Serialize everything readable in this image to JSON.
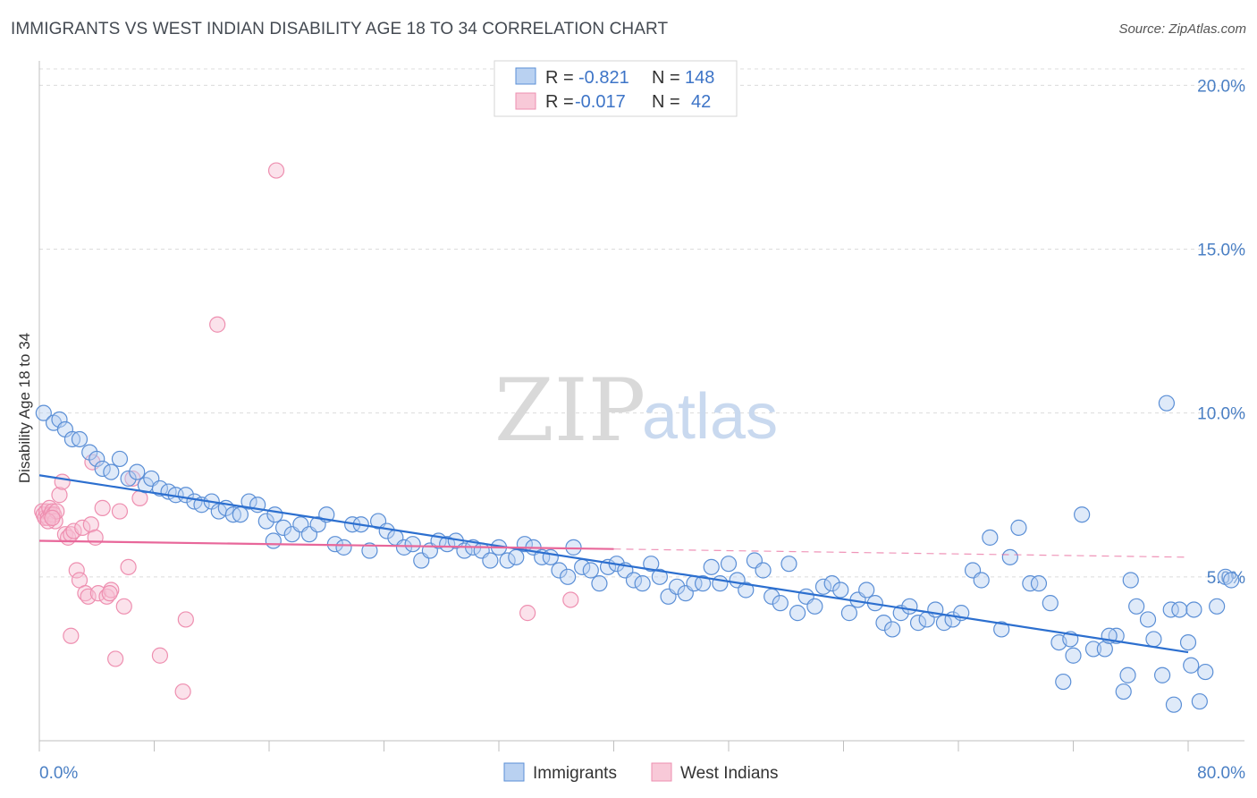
{
  "header": {
    "title": "IMMIGRANTS VS WEST INDIAN DISABILITY AGE 18 TO 34 CORRELATION CHART",
    "source": "Source: ZipAtlas.com"
  },
  "watermark": {
    "zip": "ZIP",
    "atlas": "atlas"
  },
  "legend": {
    "r_label": "R =",
    "n_label": "N =",
    "rows": [
      {
        "r": "-0.821",
        "n": "148"
      },
      {
        "r": "-0.017",
        "n": "42"
      }
    ]
  },
  "chart_data": {
    "type": "scatter",
    "title": "IMMIGRANTS VS WEST INDIAN DISABILITY AGE 18 TO 34 CORRELATION CHART",
    "ylabel": "Disability Age 18 to 34",
    "xlabel": "",
    "xlim": [
      0,
      80
    ],
    "ylim": [
      0,
      20.5
    ],
    "x_tick_labels": [
      "0.0%",
      "80.0%"
    ],
    "y_ticks": [
      5,
      10,
      15,
      20
    ],
    "y_tick_labels": [
      "5.0%",
      "10.0%",
      "15.0%",
      "20.0%"
    ],
    "grid": "horizontal dashed",
    "legend_position": "top-center",
    "colors": {
      "immigrants": "#5b8fd6",
      "west_indians": "#ee8fb0",
      "immigrants_line": "#2c6fcf",
      "west_indians_line": "#e8679a"
    },
    "series": [
      {
        "name": "Immigrants",
        "color": "#5b8fd6",
        "R": -0.821,
        "N": 148,
        "trend": {
          "x": [
            0,
            80
          ],
          "y": [
            8.1,
            2.7
          ],
          "dashed_from": null
        },
        "points": [
          [
            0.3,
            10.0
          ],
          [
            1.0,
            9.7
          ],
          [
            1.4,
            9.8
          ],
          [
            1.8,
            9.5
          ],
          [
            2.3,
            9.2
          ],
          [
            2.8,
            9.2
          ],
          [
            3.5,
            8.8
          ],
          [
            4.0,
            8.6
          ],
          [
            4.4,
            8.3
          ],
          [
            5.0,
            8.2
          ],
          [
            5.6,
            8.6
          ],
          [
            6.2,
            8.0
          ],
          [
            6.8,
            8.2
          ],
          [
            7.4,
            7.8
          ],
          [
            7.8,
            8.0
          ],
          [
            8.4,
            7.7
          ],
          [
            9.0,
            7.6
          ],
          [
            9.5,
            7.5
          ],
          [
            10.2,
            7.5
          ],
          [
            10.8,
            7.3
          ],
          [
            11.3,
            7.2
          ],
          [
            12.0,
            7.3
          ],
          [
            12.5,
            7.0
          ],
          [
            13.0,
            7.1
          ],
          [
            13.5,
            6.9
          ],
          [
            14.0,
            6.9
          ],
          [
            14.6,
            7.3
          ],
          [
            15.2,
            7.2
          ],
          [
            15.8,
            6.7
          ],
          [
            16.4,
            6.9
          ],
          [
            16.3,
            6.1
          ],
          [
            17.0,
            6.5
          ],
          [
            17.6,
            6.3
          ],
          [
            18.2,
            6.6
          ],
          [
            18.8,
            6.3
          ],
          [
            19.4,
            6.6
          ],
          [
            20.0,
            6.9
          ],
          [
            20.6,
            6.0
          ],
          [
            21.2,
            5.9
          ],
          [
            21.8,
            6.6
          ],
          [
            22.4,
            6.6
          ],
          [
            23.0,
            5.8
          ],
          [
            23.6,
            6.7
          ],
          [
            24.2,
            6.4
          ],
          [
            24.8,
            6.2
          ],
          [
            25.4,
            5.9
          ],
          [
            26.0,
            6.0
          ],
          [
            26.6,
            5.5
          ],
          [
            27.2,
            5.8
          ],
          [
            27.8,
            6.1
          ],
          [
            28.4,
            6.0
          ],
          [
            29.0,
            6.1
          ],
          [
            29.6,
            5.8
          ],
          [
            30.2,
            5.9
          ],
          [
            30.8,
            5.8
          ],
          [
            31.4,
            5.5
          ],
          [
            32.0,
            5.9
          ],
          [
            32.6,
            5.5
          ],
          [
            33.2,
            5.6
          ],
          [
            33.8,
            6.0
          ],
          [
            34.4,
            5.9
          ],
          [
            35.0,
            5.6
          ],
          [
            35.6,
            5.6
          ],
          [
            36.2,
            5.2
          ],
          [
            36.8,
            5.0
          ],
          [
            37.2,
            5.9
          ],
          [
            37.8,
            5.3
          ],
          [
            38.4,
            5.2
          ],
          [
            39.0,
            4.8
          ],
          [
            39.6,
            5.3
          ],
          [
            40.2,
            5.4
          ],
          [
            40.8,
            5.2
          ],
          [
            41.4,
            4.9
          ],
          [
            42.0,
            4.8
          ],
          [
            42.6,
            5.4
          ],
          [
            43.2,
            5.0
          ],
          [
            43.8,
            4.4
          ],
          [
            44.4,
            4.7
          ],
          [
            45.0,
            4.5
          ],
          [
            45.6,
            4.8
          ],
          [
            46.2,
            4.8
          ],
          [
            46.8,
            5.3
          ],
          [
            47.4,
            4.8
          ],
          [
            48.0,
            5.4
          ],
          [
            48.6,
            4.9
          ],
          [
            49.2,
            4.6
          ],
          [
            49.8,
            5.5
          ],
          [
            50.4,
            5.2
          ],
          [
            51.0,
            4.4
          ],
          [
            51.6,
            4.2
          ],
          [
            52.2,
            5.4
          ],
          [
            52.8,
            3.9
          ],
          [
            53.4,
            4.4
          ],
          [
            54.0,
            4.1
          ],
          [
            54.6,
            4.7
          ],
          [
            55.2,
            4.8
          ],
          [
            55.8,
            4.6
          ],
          [
            56.4,
            3.9
          ],
          [
            57.0,
            4.3
          ],
          [
            57.6,
            4.6
          ],
          [
            58.2,
            4.2
          ],
          [
            58.8,
            3.6
          ],
          [
            59.4,
            3.4
          ],
          [
            60.0,
            3.9
          ],
          [
            60.6,
            4.1
          ],
          [
            61.2,
            3.6
          ],
          [
            61.8,
            3.7
          ],
          [
            62.4,
            4.0
          ],
          [
            63.0,
            3.6
          ],
          [
            63.6,
            3.7
          ],
          [
            64.2,
            3.9
          ],
          [
            65.0,
            5.2
          ],
          [
            65.6,
            4.9
          ],
          [
            66.2,
            6.2
          ],
          [
            67.0,
            3.4
          ],
          [
            67.6,
            5.6
          ],
          [
            68.2,
            6.5
          ],
          [
            69.0,
            4.8
          ],
          [
            69.6,
            4.8
          ],
          [
            70.4,
            4.2
          ],
          [
            71.0,
            3.0
          ],
          [
            72.0,
            2.6
          ],
          [
            71.8,
            3.1
          ],
          [
            72.6,
            6.9
          ],
          [
            73.4,
            2.8
          ],
          [
            74.2,
            2.8
          ],
          [
            75.0,
            3.2
          ],
          [
            75.8,
            2.0
          ],
          [
            76.4,
            4.1
          ],
          [
            77.2,
            3.7
          ],
          [
            77.6,
            3.1
          ],
          [
            78.2,
            2.0
          ],
          [
            78.8,
            4.0
          ],
          [
            79.4,
            4.0
          ],
          [
            80.0,
            3.0
          ],
          [
            80.4,
            4.0
          ],
          [
            80.8,
            1.2
          ],
          [
            81.2,
            2.1
          ],
          [
            82.0,
            4.1
          ],
          [
            82.6,
            5.0
          ],
          [
            83.0,
            4.9
          ],
          [
            75.5,
            1.5
          ],
          [
            71.3,
            1.8
          ],
          [
            79.0,
            1.1
          ],
          [
            80.2,
            2.3
          ],
          [
            76.0,
            4.9
          ],
          [
            74.5,
            3.2
          ],
          [
            78.5,
            10.3
          ]
        ]
      },
      {
        "name": "West Indians",
        "color": "#ee8fb0",
        "R": -0.017,
        "N": 42,
        "trend": {
          "x": [
            0,
            40
          ],
          "y": [
            6.1,
            5.85
          ],
          "dashed_to": 80,
          "dashed_y": 5.6
        },
        "points": [
          [
            0.2,
            7.0
          ],
          [
            0.3,
            6.9
          ],
          [
            0.4,
            6.8
          ],
          [
            0.5,
            7.0
          ],
          [
            0.6,
            6.8
          ],
          [
            0.7,
            7.1
          ],
          [
            0.8,
            6.9
          ],
          [
            0.9,
            7.0
          ],
          [
            1.0,
            6.9
          ],
          [
            1.1,
            6.7
          ],
          [
            1.2,
            7.0
          ],
          [
            0.6,
            6.7
          ],
          [
            0.9,
            6.8
          ],
          [
            1.4,
            7.5
          ],
          [
            1.6,
            7.9
          ],
          [
            1.8,
            6.3
          ],
          [
            2.0,
            6.2
          ],
          [
            2.2,
            6.3
          ],
          [
            2.4,
            6.4
          ],
          [
            2.6,
            5.2
          ],
          [
            2.8,
            4.9
          ],
          [
            3.0,
            6.5
          ],
          [
            3.2,
            4.5
          ],
          [
            3.4,
            4.4
          ],
          [
            3.6,
            6.6
          ],
          [
            3.9,
            6.2
          ],
          [
            4.1,
            4.5
          ],
          [
            4.4,
            7.1
          ],
          [
            4.7,
            4.4
          ],
          [
            5.0,
            4.6
          ],
          [
            5.3,
            2.5
          ],
          [
            5.6,
            7.0
          ],
          [
            5.9,
            4.1
          ],
          [
            6.2,
            5.3
          ],
          [
            6.5,
            8.0
          ],
          [
            7.0,
            7.4
          ],
          [
            8.4,
            2.6
          ],
          [
            10.2,
            3.7
          ],
          [
            10.0,
            1.5
          ],
          [
            12.4,
            12.7
          ],
          [
            16.5,
            17.4
          ],
          [
            37.0,
            4.3
          ],
          [
            2.2,
            3.2
          ],
          [
            4.9,
            4.5
          ],
          [
            3.7,
            8.5
          ],
          [
            34.0,
            3.9
          ]
        ]
      }
    ]
  }
}
